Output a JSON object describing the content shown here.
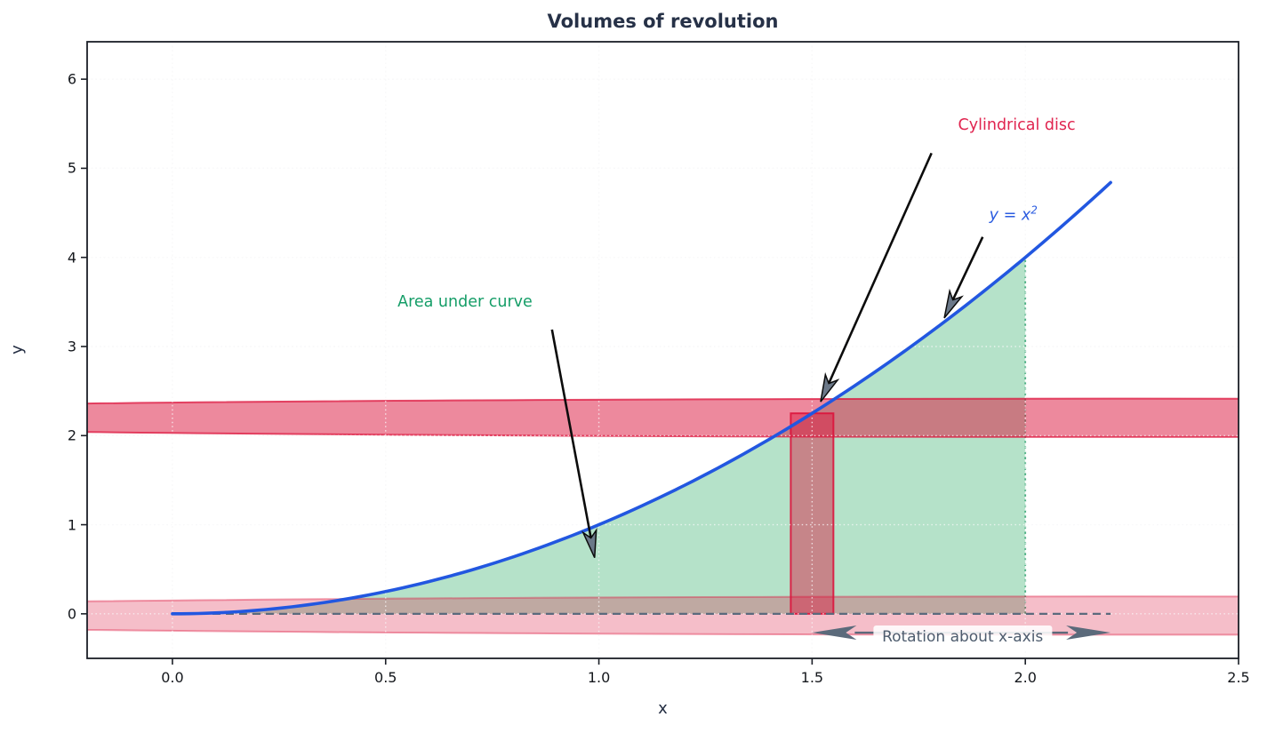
{
  "chart_data": {
    "type": "line",
    "title": "Volumes of revolution",
    "xlabel": "x",
    "ylabel": "y",
    "xlim": [
      -0.2,
      2.5
    ],
    "ylim": [
      -0.5,
      6.42
    ],
    "grid": "dotted",
    "x_ticks": {
      "values": [
        0,
        0.5,
        1.0,
        1.5,
        2.0,
        2.5
      ],
      "labels": [
        "0.0",
        "0.5",
        "1.0",
        "1.5",
        "2.0",
        "2.5"
      ]
    },
    "y_ticks": {
      "values": [
        0,
        1,
        2,
        3,
        4,
        5,
        6
      ],
      "labels": [
        "0",
        "1",
        "2",
        "3",
        "4",
        "5",
        "6"
      ]
    },
    "curve": {
      "expr": "y = x^2",
      "x_start": 0,
      "x_end": 2.2,
      "color": "#2257e0",
      "width": 3.6
    },
    "area_under_curve": {
      "x_start": 0,
      "x_end": 2.0,
      "fill": "rgba(60,179,113,0.38)",
      "edge": "rgba(46,160,110,0.85)",
      "right_edge_top_y": 4.0
    },
    "cylindrical_disc": {
      "x_center": 1.5,
      "width": 0.1,
      "y_bottom": 0,
      "y_top": 2.25,
      "fill": "rgba(220,20,60,0.45)",
      "edge": "rgba(220,20,60,0.9)"
    },
    "rotation_ellipses": [
      {
        "name": "top-rotation-band",
        "cx": 2.2,
        "cy": 2.2,
        "rx": 3.6,
        "ry": 0.215,
        "fill": "rgba(220,20,60,0.5)",
        "stroke": "rgba(220,20,60,0.75)"
      },
      {
        "name": "bottom-rotation-band",
        "cx": 2.2,
        "cy": -0.02,
        "rx": 3.6,
        "ry": 0.215,
        "fill": "rgba(220,20,60,0.28)",
        "stroke": "rgba(220,20,60,0.4)"
      }
    ],
    "zero_dashed_line": {
      "x_start": 0,
      "x_end": 2.2,
      "y": 0,
      "color": "#5b6a7d"
    },
    "annotations": [
      {
        "id": "cylindrical-disc-label",
        "text": "Cylindrical disc",
        "color": "#e0244f",
        "text_xy": [
          1.98,
          5.48
        ],
        "arrow_from": [
          1.78,
          5.17
        ],
        "arrow_to": [
          1.52,
          2.38
        ]
      },
      {
        "id": "area-under-curve-label",
        "text": "Area under curve",
        "color": "#149d67",
        "text_xy": [
          0.686,
          3.5
        ],
        "arrow_from": [
          0.89,
          3.19
        ],
        "arrow_to": [
          0.99,
          0.63
        ]
      },
      {
        "id": "curve-equation-label",
        "text": "y = x",
        "sup": "2",
        "italic": true,
        "color": "#2b5ce0",
        "text_xy": [
          1.972,
          4.49
        ],
        "arrow_from": [
          1.9,
          4.23
        ],
        "arrow_to": [
          1.81,
          3.32
        ]
      },
      {
        "id": "rotation-about-x-axis-label",
        "text": "Rotation about x-axis",
        "color": "#4e5c6e",
        "boxed": true,
        "text_xy": [
          1.853,
          -0.26
        ],
        "double_arrow": {
          "x_start": 1.5,
          "x_end": 2.2,
          "y": -0.211,
          "color": "#5b6a7b"
        }
      }
    ],
    "colors": {
      "spine": "#1b1f27",
      "title": "#263147",
      "axis_label": "#232d42",
      "tick_label": "#15181d",
      "black_arrow": "#0c0c0c",
      "arrowhead_fill": "#6b7888"
    }
  }
}
